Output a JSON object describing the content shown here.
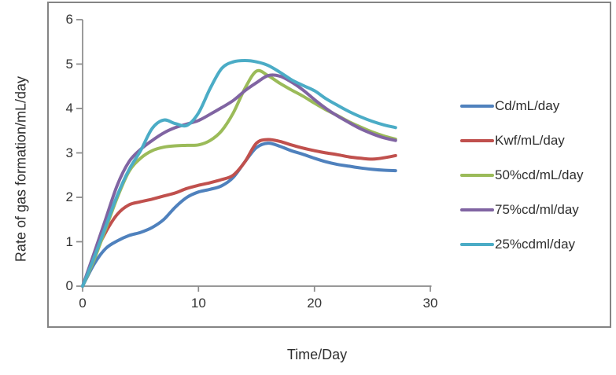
{
  "chart_data": {
    "type": "line",
    "title": "",
    "xlabel": "Time/Day",
    "ylabel": "Rate of gas formation/mL/day",
    "xlim": [
      0,
      30
    ],
    "ylim": [
      0,
      6
    ],
    "xticks": [
      0,
      10,
      20,
      30
    ],
    "yticks": [
      0,
      1,
      2,
      3,
      4,
      5,
      6
    ],
    "grid": false,
    "legend_position": "right",
    "smooth_lines": true,
    "x": [
      0,
      1,
      2,
      3,
      4,
      5,
      6,
      7,
      8,
      9,
      10,
      11,
      12,
      13,
      14,
      15,
      16,
      17,
      18,
      19,
      20,
      21,
      22,
      23,
      24,
      25,
      26,
      27
    ],
    "series": [
      {
        "name": "Cd/mL/day",
        "color": "#4F81BD",
        "values": [
          0,
          0.5,
          0.85,
          1.02,
          1.14,
          1.21,
          1.32,
          1.5,
          1.78,
          2.0,
          2.12,
          2.18,
          2.26,
          2.45,
          2.8,
          3.12,
          3.22,
          3.15,
          3.05,
          2.97,
          2.88,
          2.8,
          2.74,
          2.7,
          2.66,
          2.63,
          2.61,
          2.6
        ]
      },
      {
        "name": "Kwf/mL/day",
        "color": "#C0504D",
        "values": [
          0,
          0.68,
          1.22,
          1.62,
          1.83,
          1.9,
          1.96,
          2.03,
          2.1,
          2.2,
          2.27,
          2.33,
          2.4,
          2.5,
          2.8,
          3.22,
          3.3,
          3.26,
          3.18,
          3.11,
          3.05,
          3.0,
          2.96,
          2.91,
          2.88,
          2.86,
          2.89,
          2.94
        ]
      },
      {
        "name": "50%cd/mL/day",
        "color": "#9BBB59",
        "values": [
          0,
          0.6,
          1.3,
          2.0,
          2.58,
          2.88,
          3.05,
          3.13,
          3.16,
          3.17,
          3.18,
          3.28,
          3.5,
          3.9,
          4.45,
          4.84,
          4.74,
          4.57,
          4.42,
          4.28,
          4.12,
          3.97,
          3.84,
          3.7,
          3.58,
          3.47,
          3.38,
          3.31
        ]
      },
      {
        "name": "75%cd/ml/day",
        "color": "#8064A2",
        "values": [
          0,
          0.75,
          1.52,
          2.28,
          2.8,
          3.08,
          3.28,
          3.45,
          3.57,
          3.65,
          3.73,
          3.87,
          4.02,
          4.18,
          4.4,
          4.58,
          4.74,
          4.73,
          4.6,
          4.42,
          4.2,
          4.0,
          3.83,
          3.68,
          3.54,
          3.43,
          3.34,
          3.28
        ]
      },
      {
        "name": "25%cdml/day",
        "color": "#4BACC6",
        "values": [
          0,
          0.65,
          1.35,
          2.05,
          2.62,
          3.05,
          3.55,
          3.74,
          3.66,
          3.62,
          3.9,
          4.45,
          4.9,
          5.05,
          5.08,
          5.05,
          4.97,
          4.82,
          4.65,
          4.52,
          4.4,
          4.22,
          4.07,
          3.93,
          3.81,
          3.71,
          3.63,
          3.57
        ]
      }
    ],
    "axis_color": "#8A8A8A",
    "border_color": "#848484",
    "text_color": "#3B3B3B"
  }
}
